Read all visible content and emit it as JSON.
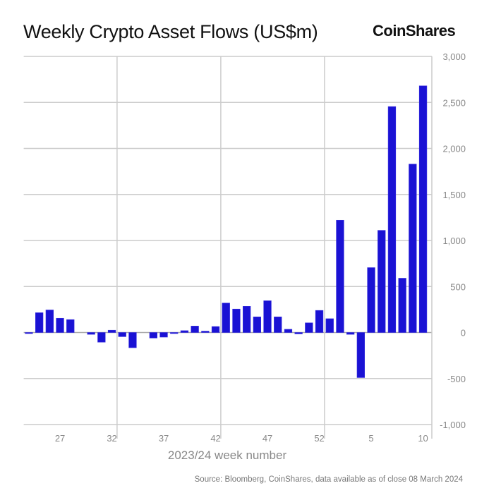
{
  "chart_data": {
    "type": "bar",
    "title": "Weekly Crypto Asset Flows (US$m)",
    "xlabel": "2023/24 week number",
    "ylabel": "",
    "ylim": [
      -1000,
      3000
    ],
    "yticks": [
      3000,
      2500,
      2000,
      1500,
      1000,
      500,
      0,
      -500,
      -1000
    ],
    "ytick_labels": [
      "3,000",
      "2,500",
      "2,000",
      "1,500",
      "1,000",
      "500",
      "0",
      "-500",
      "-1,000"
    ],
    "xtick_labels": [
      "27",
      "32",
      "37",
      "42",
      "47",
      "52",
      "5",
      "10"
    ],
    "xtick_weeks": [
      27,
      32,
      37,
      42,
      47,
      52,
      5,
      10
    ],
    "grid": true,
    "y_axis_side": "right",
    "bar_color": "#1a12d4",
    "categories": [
      24,
      25,
      26,
      27,
      28,
      29,
      30,
      31,
      32,
      33,
      34,
      35,
      36,
      37,
      38,
      39,
      40,
      41,
      42,
      43,
      44,
      45,
      46,
      47,
      48,
      49,
      50,
      51,
      52,
      1,
      2,
      3,
      4,
      5,
      6,
      7,
      8,
      9,
      10
    ],
    "values": [
      -10,
      215,
      245,
      155,
      140,
      0,
      -20,
      -105,
      25,
      -45,
      -165,
      0,
      -60,
      -50,
      -5,
      20,
      70,
      15,
      65,
      320,
      255,
      285,
      170,
      345,
      170,
      35,
      -15,
      105,
      240,
      150,
      1220,
      -20,
      -490,
      705,
      1110,
      2455,
      590,
      1830,
      2680
    ]
  },
  "brand": {
    "logo_text": "CoinShares"
  },
  "source": "Source: Bloomberg, CoinShares, data available as of close 08 March 2024"
}
